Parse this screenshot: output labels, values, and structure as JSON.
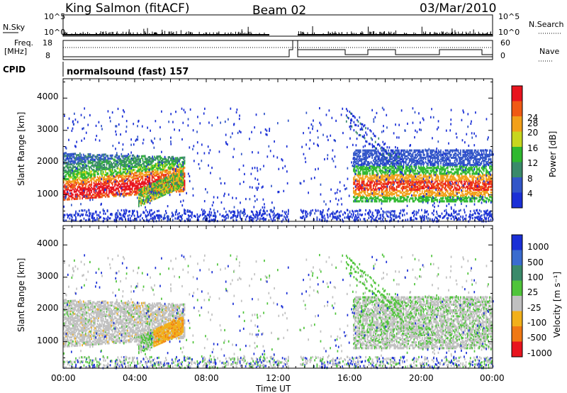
{
  "header": {
    "station": "King Salmon (fitACF)",
    "beam": "Beam 02",
    "date": "03/Mar/2010"
  },
  "param_panels": {
    "nsky_label": "N.Sky",
    "nsky_ticks": [
      "10^5",
      "10^0"
    ],
    "nsearch_label": "N.Search",
    "nsearch_ticks": [
      "10^5",
      "10^0"
    ],
    "freq_label": "Freq.",
    "freq_unit": "[MHz]",
    "freq_ticks": [
      "18",
      "8"
    ],
    "nave_label": "Nave",
    "nave_ticks": [
      "60",
      "0"
    ],
    "cpid_label": "CPID",
    "cpid_value": "normalsound (fast) 157"
  },
  "power_panel": {
    "ylabel": "Slant Range [km]",
    "yticks": [
      "4000",
      "3000",
      "2000",
      "1000"
    ],
    "colorbar_label": "Power [dB]",
    "colorbar_ticks": [
      "28",
      "24",
      "20",
      "16",
      "12",
      "8",
      "4"
    ],
    "colors": [
      "#1a2fd6",
      "#3256c8",
      "#3a8a6a",
      "#2fb82f",
      "#c7d61e",
      "#f2a01a",
      "#f05a14",
      "#e8141e"
    ]
  },
  "velocity_panel": {
    "ylabel": "Slant Range [km]",
    "yticks": [
      "4000",
      "3000",
      "2000",
      "1000"
    ],
    "colorbar_label": "Velocity [m s⁻¹]",
    "colorbar_ticks": [
      "1000",
      "500",
      "100",
      "25",
      "-25",
      "-100",
      "-500",
      "-1000"
    ],
    "colors": [
      "#1a2fd6",
      "#3a6ccf",
      "#3a8a6a",
      "#4fc43a",
      "#c0c0c0",
      "#f2b01a",
      "#f07814",
      "#e8141e"
    ]
  },
  "xaxis": {
    "label": "Time UT",
    "ticks": [
      "00:00",
      "04:00",
      "08:00",
      "12:00",
      "16:00",
      "20:00",
      "00:00"
    ]
  },
  "chart_data": [
    {
      "type": "line",
      "title": "N.Sky / N.Search",
      "x": [
        0,
        24
      ],
      "ylim": [
        0,
        5
      ]
    },
    {
      "type": "line",
      "title": "Freq. / Nave",
      "frequency_mhz_approx": 10,
      "nave_values": [
        60,
        0
      ]
    },
    {
      "type": "heatmap",
      "title": "Power [dB]",
      "xlim_hours": [
        0,
        24
      ],
      "ylim_km": [
        180,
        4600
      ],
      "color_range": [
        0,
        30
      ],
      "features": [
        {
          "t_start": 0.0,
          "t_end": 8.0,
          "range_km": [
            800,
            2300
          ],
          "power_db": [
            10,
            28
          ]
        },
        {
          "t_start": 3.0,
          "t_end": 8.0,
          "range_km": [
            650,
            1700
          ],
          "power_db": [
            8,
            20
          ]
        },
        {
          "t_start": 16.2,
          "t_end": 24.0,
          "range_km": [
            800,
            2400
          ],
          "power_db": [
            10,
            26
          ]
        }
      ]
    },
    {
      "type": "heatmap",
      "title": "Velocity [m s-1]",
      "xlim_hours": [
        0,
        24
      ],
      "ylim_km": [
        180,
        4600
      ],
      "color_range": [
        -1000,
        1000
      ],
      "features": [
        {
          "t_start": 0.0,
          "t_end": 8.0,
          "range_km": [
            800,
            2300
          ],
          "velocity_ms": [
            -25,
            25
          ]
        },
        {
          "t_start": 6.0,
          "t_end": 8.0,
          "range_km": [
            1000,
            1700
          ],
          "velocity_ms": [
            -150,
            -100
          ]
        },
        {
          "t_start": 16.2,
          "t_end": 24.0,
          "range_km": [
            800,
            2400
          ],
          "velocity_ms": [
            -25,
            100
          ]
        }
      ]
    }
  ]
}
